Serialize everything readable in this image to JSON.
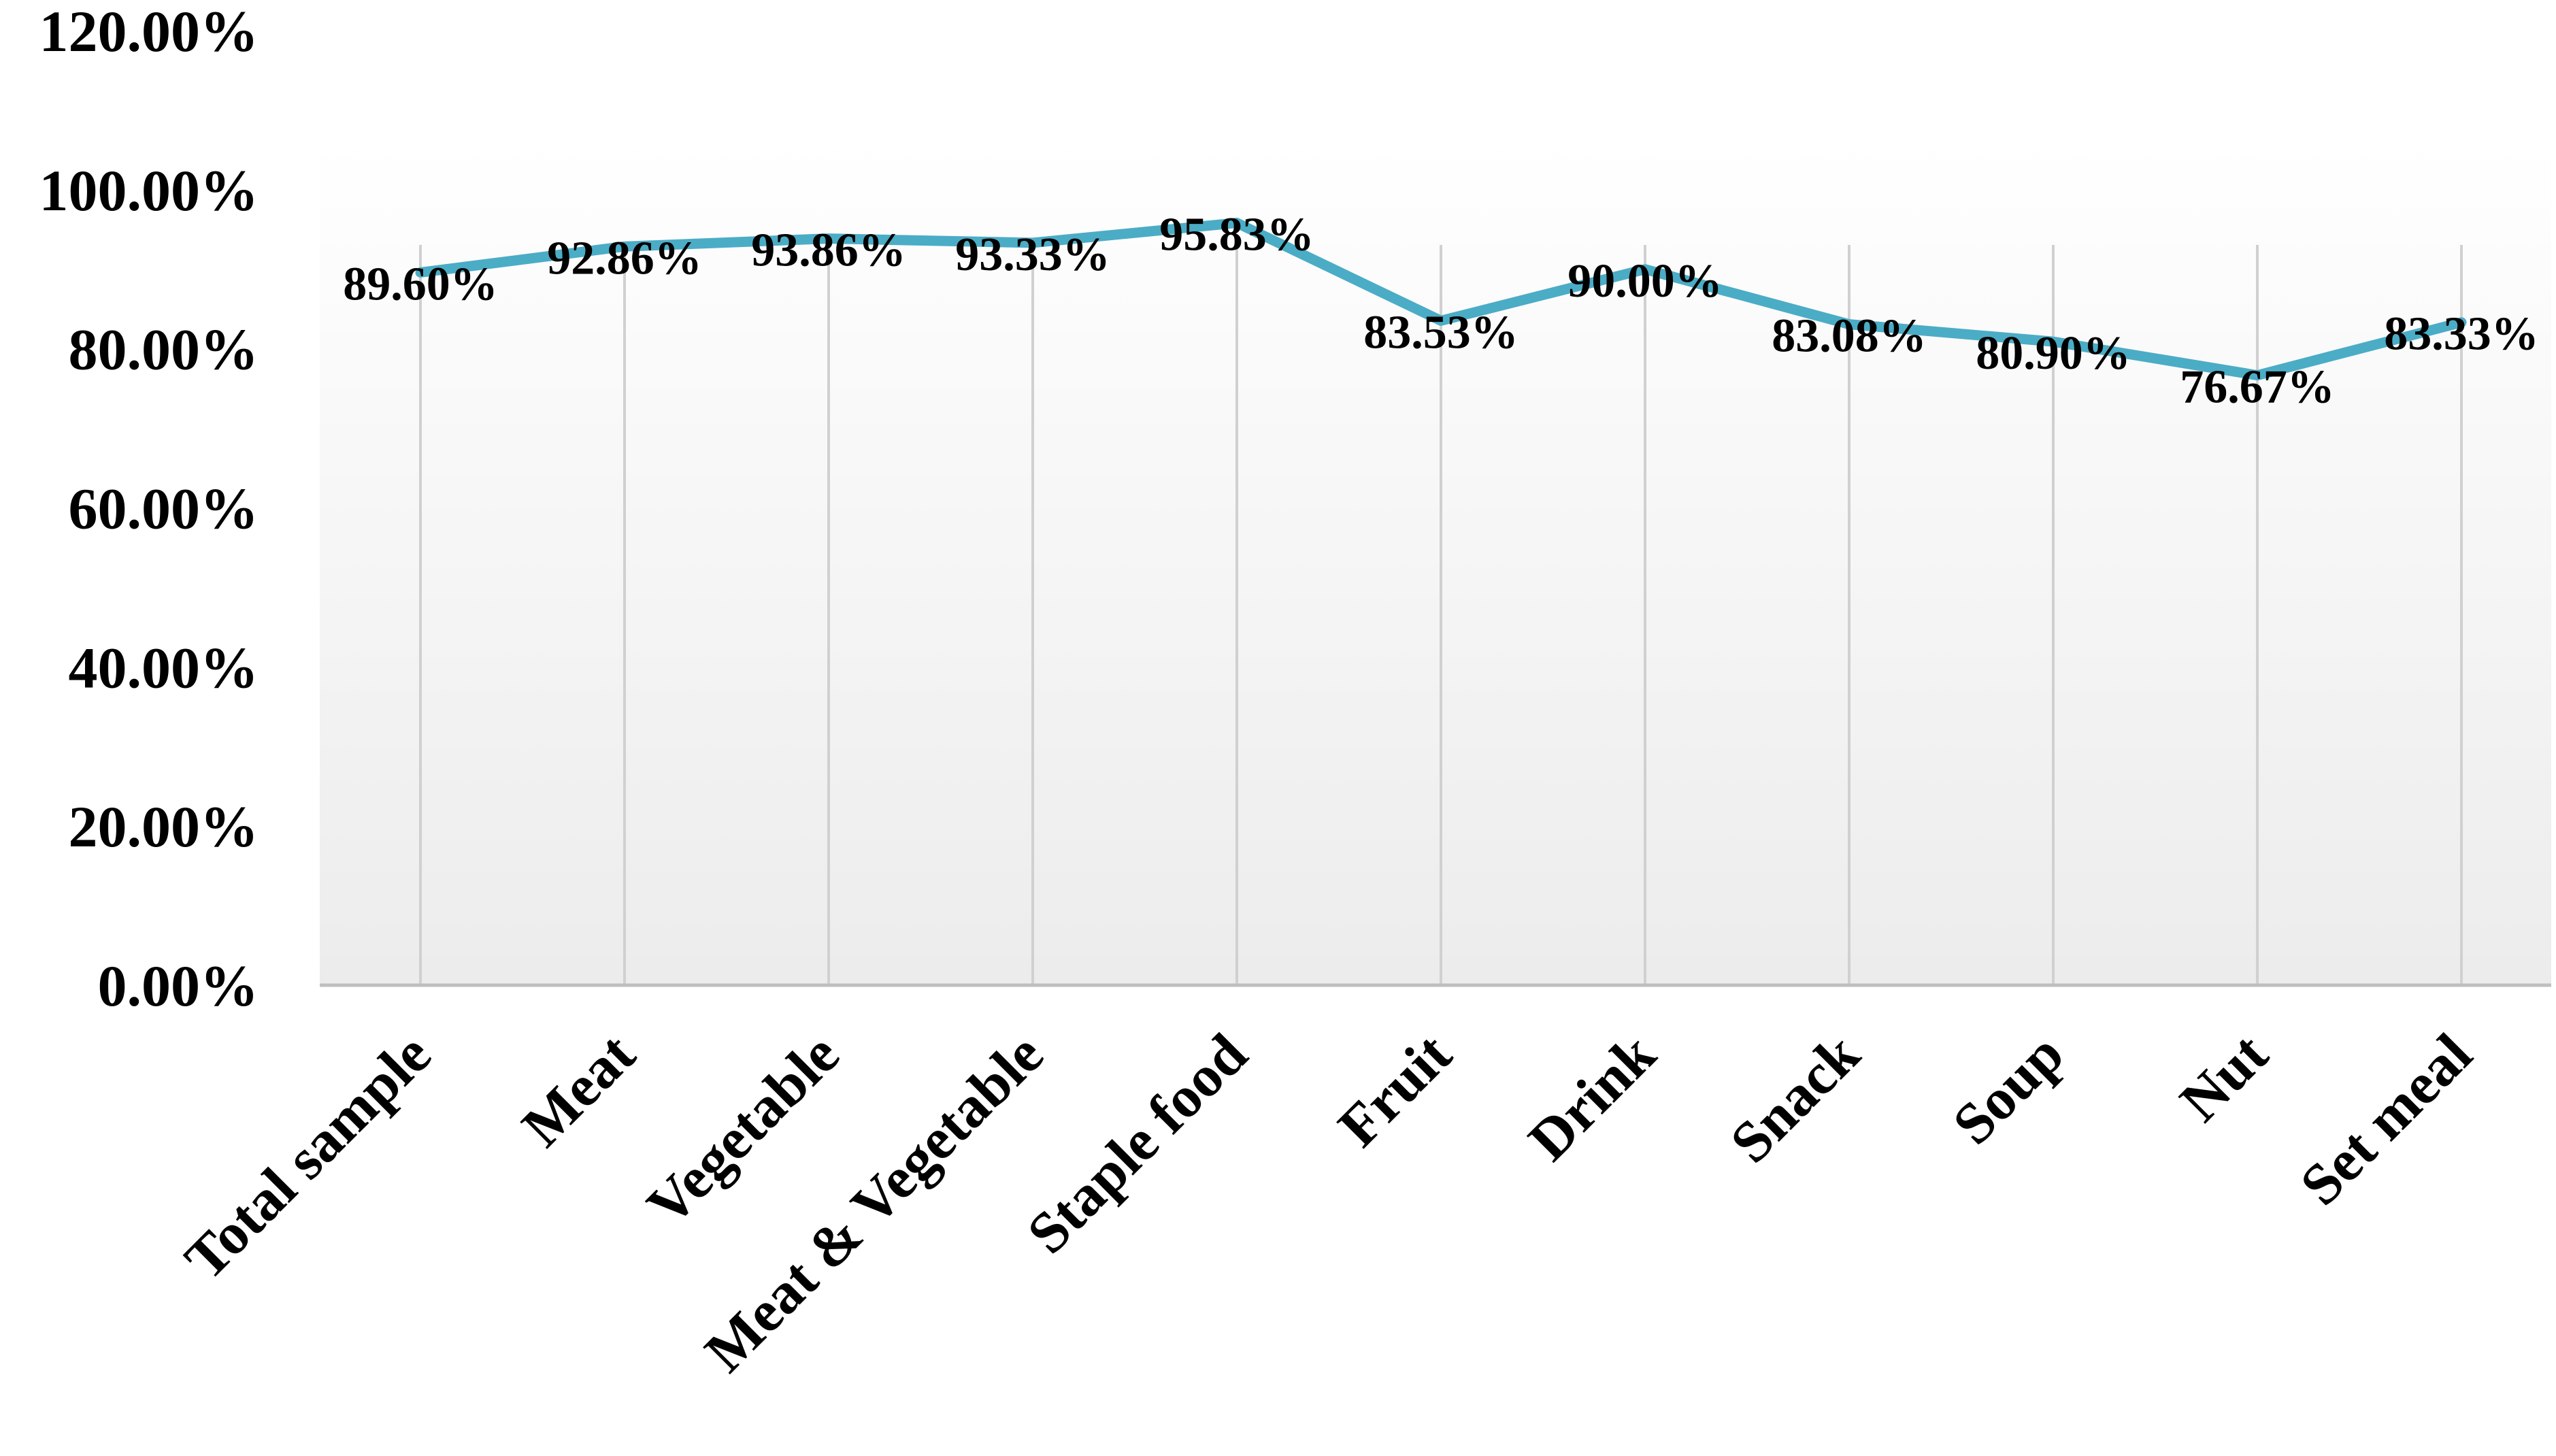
{
  "chart_data": {
    "type": "line",
    "title": "",
    "xlabel": "",
    "ylabel": "",
    "categories": [
      "Total sample",
      "Meat",
      "Vegetable",
      "Meat & Vegetable",
      "Staple food",
      "Fruit",
      "Drink",
      "Snack",
      "Soup",
      "Nut",
      "Set meal"
    ],
    "series": [
      {
        "values": [
          89.6,
          92.86,
          93.86,
          93.33,
          95.83,
          83.53,
          90.0,
          83.08,
          80.9,
          76.67,
          83.33
        ],
        "data_labels": [
          "89.60%",
          "92.86%",
          "93.86%",
          "93.33%",
          "95.83%",
          "83.53%",
          "90.00%",
          "83.08%",
          "80.90%",
          "76.67%",
          "83.33%"
        ],
        "color": "#4bacc6"
      }
    ],
    "ylim": [
      0,
      120
    ],
    "y_ticks": [
      0,
      20,
      40,
      60,
      80,
      100,
      120
    ],
    "y_tick_labels": [
      "0.00%",
      "20.00%",
      "40.00%",
      "60.00%",
      "80.00%",
      "100.00%",
      "120.00%"
    ],
    "grid": "vertical",
    "legend": "none",
    "plot_background": "gradient white to light gray"
  }
}
